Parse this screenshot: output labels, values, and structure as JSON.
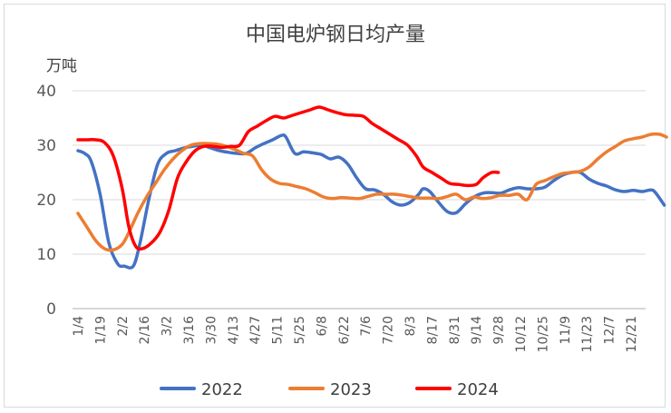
{
  "chart_data": {
    "type": "line",
    "title": "中国电炉钢日均产量",
    "ylabel": "万吨",
    "ylim": [
      0,
      40
    ],
    "yticks": [
      0,
      10,
      20,
      30,
      40
    ],
    "grid": true,
    "legend_position": "bottom",
    "x_tick_labels": [
      "1/4",
      "1/19",
      "2/2",
      "2/16",
      "3/2",
      "3/16",
      "3/30",
      "4/13",
      "4/27",
      "5/11",
      "5/25",
      "6/8",
      "6/22",
      "7/6",
      "7/20",
      "8/3",
      "8/17",
      "8/31",
      "9/14",
      "9/28",
      "10/12",
      "10/25",
      "11/9",
      "11/23",
      "12/7",
      "12/21"
    ],
    "series": [
      {
        "name": "2022",
        "color": "#4472C4",
        "points": [
          [
            0,
            29
          ],
          [
            0.3,
            28.5
          ],
          [
            0.6,
            27
          ],
          [
            1.0,
            21
          ],
          [
            1.4,
            12
          ],
          [
            1.8,
            8.2
          ],
          [
            2.1,
            7.8
          ],
          [
            2.5,
            7.8
          ],
          [
            2.8,
            12
          ],
          [
            3.2,
            20
          ],
          [
            3.6,
            26.5
          ],
          [
            4.0,
            28.5
          ],
          [
            4.4,
            29
          ],
          [
            4.8,
            29.5
          ],
          [
            5.2,
            29.8
          ],
          [
            5.6,
            30
          ],
          [
            6.0,
            29.5
          ],
          [
            6.4,
            29
          ],
          [
            6.8,
            28.7
          ],
          [
            7.2,
            28.5
          ],
          [
            7.6,
            28.5
          ],
          [
            8.0,
            29.5
          ],
          [
            8.4,
            30.3
          ],
          [
            8.8,
            31
          ],
          [
            9.2,
            31.8
          ],
          [
            9.4,
            31.5
          ],
          [
            9.8,
            28.5
          ],
          [
            10.2,
            28.8
          ],
          [
            10.6,
            28.6
          ],
          [
            11.0,
            28.3
          ],
          [
            11.4,
            27.5
          ],
          [
            11.8,
            27.8
          ],
          [
            12.2,
            26.5
          ],
          [
            12.6,
            24
          ],
          [
            13.0,
            22
          ],
          [
            13.4,
            21.8
          ],
          [
            13.8,
            21
          ],
          [
            14.2,
            19.6
          ],
          [
            14.6,
            19
          ],
          [
            15.0,
            19.5
          ],
          [
            15.4,
            21
          ],
          [
            15.6,
            22
          ],
          [
            15.9,
            21.5
          ],
          [
            16.3,
            19.5
          ],
          [
            16.7,
            17.8
          ],
          [
            17.1,
            17.6
          ],
          [
            17.5,
            19.2
          ],
          [
            17.9,
            20.5
          ],
          [
            18.3,
            21.2
          ],
          [
            18.7,
            21.3
          ],
          [
            19.1,
            21.2
          ],
          [
            19.5,
            21.8
          ],
          [
            19.9,
            22.2
          ],
          [
            20.3,
            22
          ],
          [
            20.7,
            22
          ],
          [
            21.1,
            22.3
          ],
          [
            21.5,
            23.5
          ],
          [
            21.9,
            24.5
          ],
          [
            22.3,
            25
          ],
          [
            22.7,
            25
          ],
          [
            23.1,
            23.8
          ],
          [
            23.5,
            23
          ],
          [
            23.9,
            22.5
          ],
          [
            24.3,
            21.8
          ],
          [
            24.7,
            21.5
          ],
          [
            25.1,
            21.7
          ],
          [
            25.5,
            21.5
          ],
          [
            25.9,
            21.8
          ],
          [
            26.1,
            21.3
          ],
          [
            26.5,
            19
          ]
        ]
      },
      {
        "name": "2023",
        "color": "#ED7D31",
        "points": [
          [
            0,
            17.5
          ],
          [
            0.4,
            15
          ],
          [
            0.8,
            12.5
          ],
          [
            1.2,
            11
          ],
          [
            1.6,
            10.8
          ],
          [
            2.0,
            11.8
          ],
          [
            2.3,
            14
          ],
          [
            2.7,
            17.5
          ],
          [
            3.1,
            20.5
          ],
          [
            3.5,
            23
          ],
          [
            3.9,
            25.5
          ],
          [
            4.3,
            27.5
          ],
          [
            4.7,
            29
          ],
          [
            5.1,
            30
          ],
          [
            5.5,
            30.3
          ],
          [
            5.9,
            30.3
          ],
          [
            6.3,
            30.2
          ],
          [
            6.7,
            29.8
          ],
          [
            7.1,
            29.2
          ],
          [
            7.5,
            28.5
          ],
          [
            7.9,
            28
          ],
          [
            8.3,
            25.5
          ],
          [
            8.7,
            23.8
          ],
          [
            9.1,
            23
          ],
          [
            9.5,
            22.8
          ],
          [
            9.9,
            22.4
          ],
          [
            10.3,
            22
          ],
          [
            10.7,
            21.3
          ],
          [
            11.1,
            20.5
          ],
          [
            11.5,
            20.2
          ],
          [
            11.9,
            20.4
          ],
          [
            12.3,
            20.3
          ],
          [
            12.7,
            20.2
          ],
          [
            13.1,
            20.6
          ],
          [
            13.5,
            21
          ],
          [
            13.9,
            21
          ],
          [
            14.3,
            21
          ],
          [
            14.7,
            20.8
          ],
          [
            15.1,
            20.5
          ],
          [
            15.5,
            20.3
          ],
          [
            15.9,
            20.3
          ],
          [
            16.3,
            20.2
          ],
          [
            16.7,
            20.6
          ],
          [
            17.1,
            21
          ],
          [
            17.5,
            20
          ],
          [
            17.9,
            20.5
          ],
          [
            18.3,
            20.2
          ],
          [
            18.7,
            20.4
          ],
          [
            19.1,
            20.8
          ],
          [
            19.5,
            20.8
          ],
          [
            19.9,
            21
          ],
          [
            20.3,
            20
          ],
          [
            20.7,
            22.8
          ],
          [
            21.1,
            23.5
          ],
          [
            21.5,
            24.2
          ],
          [
            21.9,
            24.8
          ],
          [
            22.3,
            25
          ],
          [
            22.7,
            25.2
          ],
          [
            23.1,
            26
          ],
          [
            23.5,
            27.5
          ],
          [
            23.9,
            28.8
          ],
          [
            24.3,
            29.8
          ],
          [
            24.7,
            30.8
          ],
          [
            25.1,
            31.2
          ],
          [
            25.5,
            31.5
          ],
          [
            25.9,
            32
          ],
          [
            26.3,
            32
          ],
          [
            26.6,
            31.5
          ]
        ]
      },
      {
        "name": "2024",
        "color": "#FF0000",
        "points": [
          [
            0,
            31
          ],
          [
            0.4,
            31
          ],
          [
            0.8,
            31
          ],
          [
            1.2,
            30.5
          ],
          [
            1.6,
            28
          ],
          [
            2.0,
            22
          ],
          [
            2.3,
            15
          ],
          [
            2.6,
            11.5
          ],
          [
            2.9,
            11
          ],
          [
            3.3,
            12
          ],
          [
            3.7,
            14
          ],
          [
            4.1,
            18
          ],
          [
            4.5,
            24
          ],
          [
            4.9,
            27
          ],
          [
            5.3,
            29
          ],
          [
            5.7,
            29.8
          ],
          [
            6.1,
            29.8
          ],
          [
            6.5,
            29.6
          ],
          [
            6.9,
            29.8
          ],
          [
            7.3,
            30
          ],
          [
            7.7,
            32.5
          ],
          [
            8.1,
            33.5
          ],
          [
            8.5,
            34.5
          ],
          [
            8.9,
            35.3
          ],
          [
            9.3,
            35
          ],
          [
            9.7,
            35.5
          ],
          [
            10.1,
            36
          ],
          [
            10.5,
            36.5
          ],
          [
            10.9,
            37
          ],
          [
            11.3,
            36.5
          ],
          [
            11.7,
            36
          ],
          [
            12.1,
            35.6
          ],
          [
            12.5,
            35.5
          ],
          [
            12.9,
            35.3
          ],
          [
            13.3,
            34
          ],
          [
            13.7,
            33
          ],
          [
            14.1,
            32
          ],
          [
            14.5,
            31
          ],
          [
            14.9,
            30
          ],
          [
            15.3,
            28
          ],
          [
            15.6,
            26
          ],
          [
            16.0,
            25
          ],
          [
            16.4,
            24
          ],
          [
            16.8,
            23
          ],
          [
            17.2,
            22.8
          ],
          [
            17.6,
            22.6
          ],
          [
            18.0,
            22.8
          ],
          [
            18.3,
            24
          ],
          [
            18.7,
            25
          ],
          [
            19.0,
            25
          ]
        ]
      }
    ]
  }
}
